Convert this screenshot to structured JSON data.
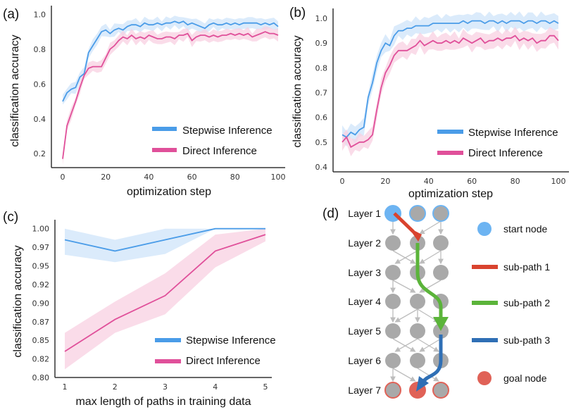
{
  "colors": {
    "stepwise": "#4a9ce8",
    "direct": "#e0509a",
    "stepwise_band": "#cfe4f9",
    "direct_band": "#f8d0e2",
    "node": "#a9a9a9",
    "start": "#6db4f2",
    "goal": "#e06257",
    "sub1": "#d9432e",
    "sub2": "#5bb43a",
    "sub3": "#2f6fb5",
    "edge": "#bdbdbd"
  },
  "chart_data": [
    {
      "panel_label": "(a)",
      "type": "line",
      "xlabel": "optimization step",
      "ylabel": "classification accuracy",
      "xlim": [
        0,
        100
      ],
      "ylim": [
        0.12,
        1.05
      ],
      "xticks": [
        "0",
        "20",
        "40",
        "60",
        "80",
        "100"
      ],
      "xtick_values": [
        0,
        20,
        40,
        60,
        80,
        100
      ],
      "yticks": [
        "0.2",
        "0.4",
        "0.6",
        "0.8",
        "1.0"
      ],
      "ytick_values": [
        0.2,
        0.4,
        0.6,
        0.8,
        1.0
      ],
      "legend_position": "bottom-right",
      "shaded_bands": true,
      "x": [
        0,
        2,
        4,
        6,
        8,
        10,
        12,
        14,
        16,
        18,
        20,
        22,
        24,
        26,
        28,
        30,
        32,
        34,
        36,
        38,
        40,
        42,
        44,
        46,
        48,
        50,
        52,
        54,
        56,
        58,
        60,
        62,
        64,
        66,
        68,
        70,
        72,
        74,
        76,
        78,
        80,
        82,
        84,
        86,
        88,
        90,
        92,
        94,
        96,
        98,
        100
      ],
      "series": [
        {
          "name": "Stepwise Inference",
          "values": [
            0.5,
            0.55,
            0.57,
            0.58,
            0.64,
            0.66,
            0.78,
            0.82,
            0.86,
            0.9,
            0.91,
            0.89,
            0.91,
            0.92,
            0.91,
            0.93,
            0.94,
            0.94,
            0.93,
            0.95,
            0.94,
            0.94,
            0.95,
            0.94,
            0.95,
            0.95,
            0.96,
            0.95,
            0.96,
            0.94,
            0.95,
            0.94,
            0.93,
            0.92,
            0.94,
            0.95,
            0.94,
            0.94,
            0.95,
            0.94,
            0.95,
            0.94,
            0.95,
            0.95,
            0.95,
            0.95,
            0.94,
            0.95,
            0.94,
            0.95,
            0.93
          ]
        },
        {
          "name": "Direct Inference",
          "values": [
            0.17,
            0.36,
            0.43,
            0.5,
            0.58,
            0.65,
            0.69,
            0.7,
            0.7,
            0.7,
            0.75,
            0.8,
            0.82,
            0.85,
            0.87,
            0.86,
            0.88,
            0.86,
            0.87,
            0.86,
            0.88,
            0.87,
            0.86,
            0.86,
            0.87,
            0.87,
            0.86,
            0.88,
            0.88,
            0.89,
            0.85,
            0.87,
            0.88,
            0.88,
            0.87,
            0.88,
            0.87,
            0.88,
            0.88,
            0.89,
            0.88,
            0.89,
            0.88,
            0.89,
            0.87,
            0.88,
            0.89,
            0.9,
            0.89,
            0.89,
            0.88
          ]
        }
      ]
    },
    {
      "panel_label": "(b)",
      "type": "line",
      "xlabel": "optimization step",
      "ylabel": "classification accuracy",
      "xlim": [
        0,
        100
      ],
      "ylim": [
        0.38,
        1.04
      ],
      "xticks": [
        "0",
        "20",
        "40",
        "60",
        "80",
        "100"
      ],
      "xtick_values": [
        0,
        20,
        40,
        60,
        80,
        100
      ],
      "yticks": [
        "0.4",
        "0.5",
        "0.6",
        "0.7",
        "0.8",
        "0.9",
        "1.0"
      ],
      "ytick_values": [
        0.4,
        0.5,
        0.6,
        0.7,
        0.8,
        0.9,
        1.0
      ],
      "legend_position": "bottom-right",
      "shaded_bands": true,
      "x": [
        0,
        2,
        4,
        6,
        8,
        10,
        12,
        14,
        16,
        18,
        20,
        22,
        24,
        26,
        28,
        30,
        32,
        34,
        36,
        38,
        40,
        42,
        44,
        46,
        48,
        50,
        52,
        54,
        56,
        58,
        60,
        62,
        64,
        66,
        68,
        70,
        72,
        74,
        76,
        78,
        80,
        82,
        84,
        86,
        88,
        90,
        92,
        94,
        96,
        98,
        100
      ],
      "series": [
        {
          "name": "Stepwise Inference",
          "values": [
            0.53,
            0.52,
            0.54,
            0.53,
            0.55,
            0.56,
            0.68,
            0.74,
            0.82,
            0.87,
            0.9,
            0.89,
            0.93,
            0.95,
            0.95,
            0.96,
            0.96,
            0.97,
            0.97,
            0.97,
            0.97,
            0.98,
            0.98,
            0.98,
            0.98,
            0.98,
            0.98,
            0.98,
            0.99,
            0.98,
            0.99,
            0.99,
            0.99,
            0.98,
            0.99,
            0.99,
            0.98,
            0.99,
            0.98,
            0.99,
            0.99,
            0.99,
            0.98,
            0.99,
            0.99,
            0.98,
            0.99,
            0.99,
            0.98,
            0.99,
            0.98
          ]
        },
        {
          "name": "Direct Inference",
          "values": [
            0.5,
            0.52,
            0.48,
            0.49,
            0.5,
            0.5,
            0.51,
            0.53,
            0.63,
            0.72,
            0.78,
            0.81,
            0.85,
            0.87,
            0.87,
            0.87,
            0.88,
            0.89,
            0.91,
            0.89,
            0.9,
            0.91,
            0.9,
            0.9,
            0.91,
            0.9,
            0.91,
            0.9,
            0.92,
            0.91,
            0.9,
            0.91,
            0.92,
            0.9,
            0.91,
            0.91,
            0.92,
            0.91,
            0.92,
            0.92,
            0.93,
            0.91,
            0.92,
            0.91,
            0.92,
            0.9,
            0.91,
            0.91,
            0.93,
            0.93,
            0.91
          ]
        }
      ]
    },
    {
      "panel_label": "(c)",
      "type": "line",
      "xlabel": "max length of paths in training data",
      "ylabel": "classification accuracy",
      "xlim": [
        0.8,
        5.2
      ],
      "ylim": [
        0.8,
        1.012
      ],
      "xticks": [
        "1",
        "2",
        "3",
        "4",
        "5"
      ],
      "xtick_values": [
        1,
        2,
        3,
        4,
        5
      ],
      "yticks": [
        "0.80",
        "0.82",
        "0.85",
        "0.87",
        "0.90",
        "0.92",
        "0.95",
        "0.97",
        "1.00"
      ],
      "ytick_values": [
        0.8,
        0.825,
        0.85,
        0.875,
        0.9,
        0.925,
        0.95,
        0.975,
        1.0
      ],
      "legend_position": "bottom-right",
      "x": [
        1,
        2,
        3,
        4,
        5
      ],
      "series": [
        {
          "name": "Stepwise Inference",
          "values": [
            0.985,
            0.97,
            0.985,
            1.0,
            1.0
          ],
          "lower": [
            0.965,
            0.955,
            0.966,
            1.0,
            1.0
          ],
          "upper": [
            1.0,
            0.985,
            1.0,
            1.0,
            1.0
          ]
        },
        {
          "name": "Direct Inference",
          "values": [
            0.835,
            0.878,
            0.91,
            0.97,
            0.992
          ],
          "lower": [
            0.811,
            0.86,
            0.885,
            0.948,
            0.983
          ],
          "upper": [
            0.86,
            0.902,
            0.94,
            0.992,
            1.0
          ]
        }
      ]
    }
  ],
  "diagram": {
    "panel_label": "(d)",
    "layers": [
      "Layer 1",
      "Layer 2",
      "Layer 3",
      "Layer 4",
      "Layer 5",
      "Layer 6",
      "Layer 7"
    ],
    "start_node": [
      0,
      0
    ],
    "goal_node": [
      6,
      1
    ],
    "edges": [
      [
        [
          0,
          0
        ],
        [
          2,
          1
        ],
        [
          2,
          2
        ]
      ],
      [
        [
          0,
          1
        ],
        [
          1,
          0
        ],
        [
          2,
          1
        ],
        [
          2,
          2
        ]
      ],
      [
        [
          0,
          0
        ],
        [
          0,
          1
        ],
        [
          2,
          1
        ]
      ],
      [
        [
          0,
          0
        ],
        [
          1,
          0
        ],
        [
          1,
          1
        ],
        [
          1,
          2
        ]
      ],
      [
        [
          0,
          1
        ],
        [
          1,
          0
        ],
        [
          1,
          2
        ],
        [
          2,
          1
        ]
      ],
      [
        [
          0,
          0
        ],
        [
          0,
          1
        ],
        [
          1,
          2
        ]
      ]
    ],
    "legend": [
      {
        "kind": "circle",
        "color_key": "start",
        "label": "start node"
      },
      {
        "kind": "line",
        "color_key": "sub1",
        "label": "sub-path 1"
      },
      {
        "kind": "line",
        "color_key": "sub2",
        "label": "sub-path 2"
      },
      {
        "kind": "line",
        "color_key": "sub3",
        "label": "sub-path 3"
      },
      {
        "kind": "circle",
        "color_key": "goal",
        "label": "goal node"
      }
    ]
  }
}
